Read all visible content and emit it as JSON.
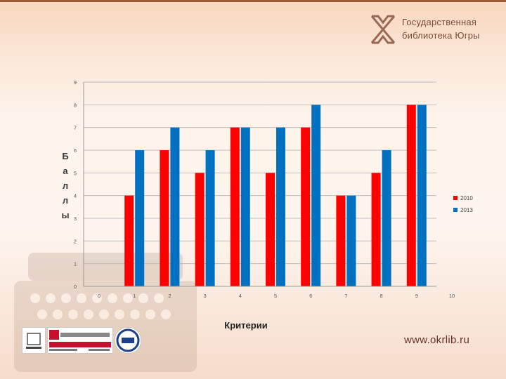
{
  "header": {
    "logo_line1": "Государственная",
    "logo_line2": "библиотека Югры"
  },
  "footer": {
    "website": "www.okrlib.ru",
    "badges": [
      "pci-badge",
      "quality-austria-badge",
      "iqnet-badge"
    ]
  },
  "colors": {
    "series_2010": "#ff0000",
    "series_2013": "#0070c0",
    "accent": "#7a4a3a"
  },
  "chart_data": {
    "type": "bar",
    "title": "",
    "xlabel": "Критерии",
    "ylabel": "Баллы",
    "ylabel_letters": [
      "Б",
      "а",
      "л",
      "л",
      "ы"
    ],
    "xlim": [
      0,
      10
    ],
    "x_ticks": [
      "0",
      "1",
      "2",
      "3",
      "4",
      "5",
      "6",
      "7",
      "8",
      "9",
      "10"
    ],
    "ylim": [
      0,
      9
    ],
    "y_ticks": [
      "0",
      "1",
      "2",
      "3",
      "4",
      "5",
      "6",
      "7",
      "8",
      "9"
    ],
    "grid": true,
    "legend_position": "right",
    "categories": [
      1,
      2,
      3,
      4,
      5,
      6,
      7,
      8,
      9
    ],
    "series": [
      {
        "name": "2010",
        "color": "#ff0000",
        "values": [
          4,
          6,
          5,
          7,
          5,
          7,
          4,
          5,
          8
        ]
      },
      {
        "name": "2013",
        "color": "#0070c0",
        "values": [
          6,
          7,
          6,
          7,
          7,
          8,
          4,
          6,
          8
        ]
      }
    ]
  }
}
